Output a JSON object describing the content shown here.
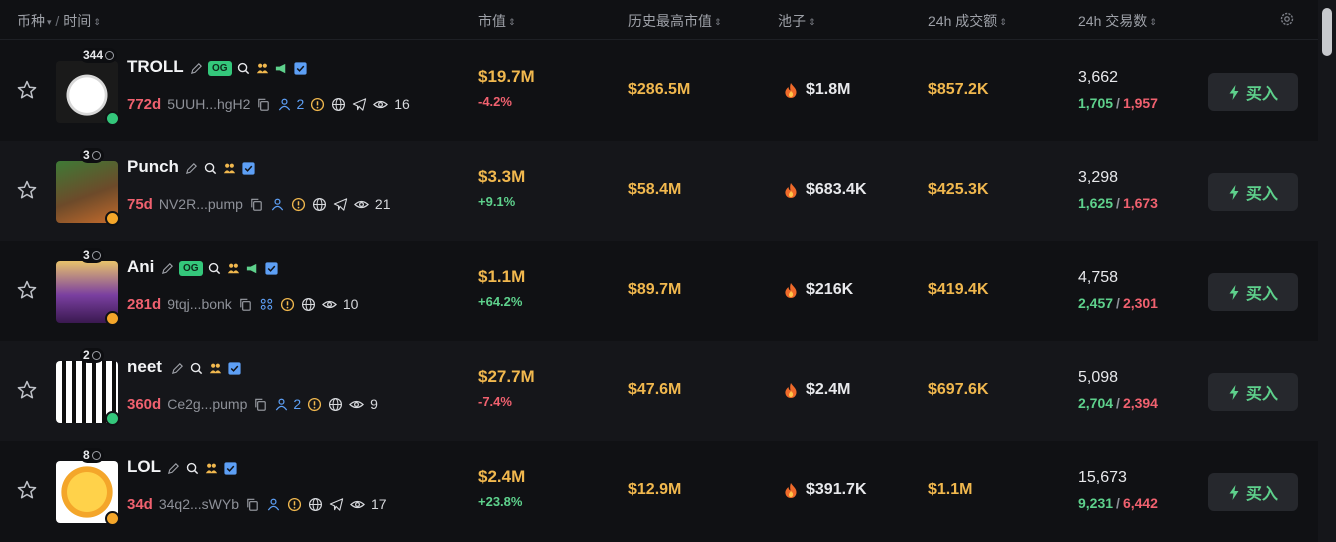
{
  "header": {
    "coin_label": "币种",
    "time_label": "时间",
    "market_cap": "市值",
    "ath": "历史最高市值",
    "pool": "池子",
    "volume": "24h 成交额",
    "txns": "24h 交易数"
  },
  "buy_label": "买入",
  "rows": [
    {
      "name": "TROLL",
      "og": "OG",
      "holders_badge": "344",
      "age": "772d",
      "address": "5UUH...hgH2",
      "holder_count": "2",
      "views": "16",
      "platform": "pump",
      "market_cap": "$19.7M",
      "change": "-4.2%",
      "ath": "$286.5M",
      "pool": "$1.8M",
      "volume": "$857.2K",
      "txns": "3,662",
      "buys": "1,705",
      "sells": "1,957"
    },
    {
      "name": "Punch",
      "og": "",
      "holders_badge": "3",
      "age": "75d",
      "address": "NV2R...pump",
      "holder_count": "",
      "views": "21",
      "platform": "bonk",
      "market_cap": "$3.3M",
      "change": "+9.1%",
      "ath": "$58.4M",
      "pool": "$683.4K",
      "volume": "$425.3K",
      "txns": "3,298",
      "buys": "1,625",
      "sells": "1,673"
    },
    {
      "name": "Ani",
      "og": "OG",
      "holders_badge": "3",
      "age": "281d",
      "address": "9tqj...bonk",
      "holder_count": "",
      "views": "10",
      "platform": "bonk",
      "market_cap": "$1.1M",
      "change": "+64.2%",
      "ath": "$89.7M",
      "pool": "$216K",
      "volume": "$419.4K",
      "txns": "4,758",
      "buys": "2,457",
      "sells": "2,301"
    },
    {
      "name": "neet",
      "og": "",
      "holders_badge": "2",
      "age": "360d",
      "address": "Ce2g...pump",
      "holder_count": "2",
      "views": "9",
      "platform": "pump",
      "market_cap": "$27.7M",
      "change": "-7.4%",
      "ath": "$47.6M",
      "pool": "$2.4M",
      "volume": "$697.6K",
      "txns": "5,098",
      "buys": "2,704",
      "sells": "2,394"
    },
    {
      "name": "LOL",
      "og": "",
      "holders_badge": "8",
      "age": "34d",
      "address": "34q2...sWYb",
      "holder_count": "",
      "views": "17",
      "platform": "bonk",
      "market_cap": "$2.4M",
      "change": "+23.8%",
      "ath": "$12.9M",
      "pool": "$391.7K",
      "volume": "$1.1M",
      "txns": "15,673",
      "buys": "9,231",
      "sells": "6,442"
    }
  ],
  "colors": {
    "background": "#101114",
    "alt_row": "#15161a",
    "gold": "#f1b84e",
    "green": "#5ed18c",
    "red": "#f0616f",
    "blue": "#5d9ff5"
  }
}
